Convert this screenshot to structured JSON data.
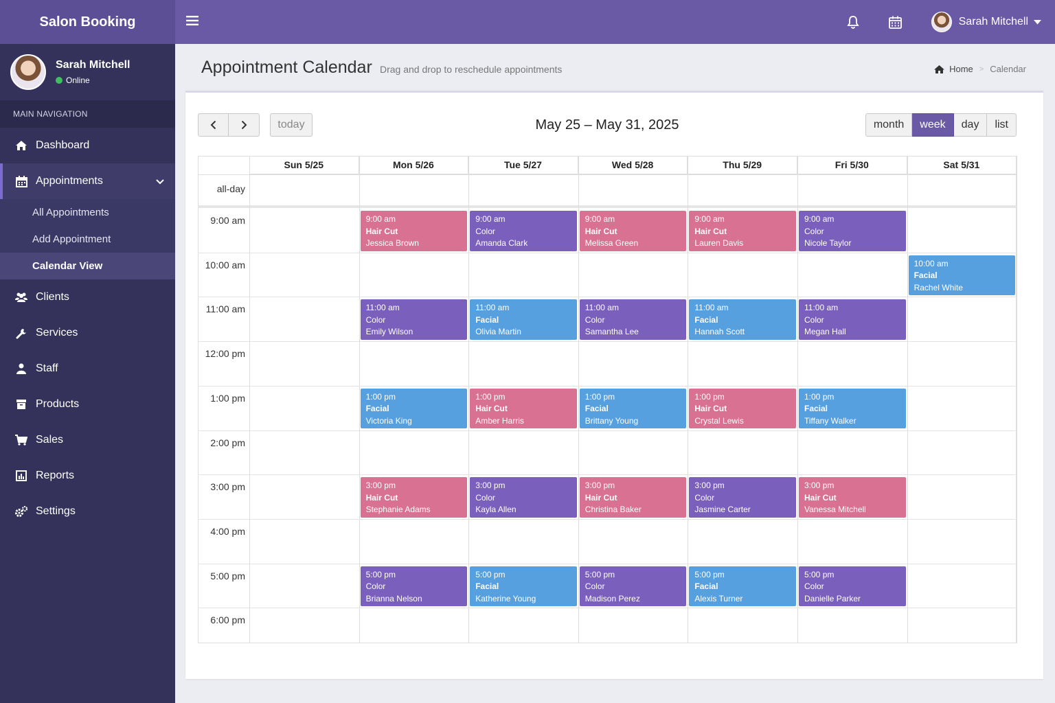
{
  "app": {
    "title": "Salon Booking"
  },
  "user": {
    "name": "Sarah Mitchell",
    "status": "Online"
  },
  "sidebar": {
    "header": "MAIN NAVIGATION",
    "items": [
      {
        "label": "Dashboard",
        "icon": "dashboard-icon"
      },
      {
        "label": "Appointments",
        "icon": "calendar-icon"
      },
      {
        "label": "Clients",
        "icon": "users-icon"
      },
      {
        "label": "Services",
        "icon": "wrench-icon"
      },
      {
        "label": "Staff",
        "icon": "user-icon"
      },
      {
        "label": "Products",
        "icon": "box-icon"
      },
      {
        "label": "Sales",
        "icon": "cart-icon"
      },
      {
        "label": "Reports",
        "icon": "chart-icon"
      },
      {
        "label": "Settings",
        "icon": "gears-icon"
      }
    ],
    "subitems": [
      {
        "label": "All Appointments"
      },
      {
        "label": "Add Appointment"
      },
      {
        "label": "Calendar View"
      }
    ]
  },
  "header": {
    "title": "Appointment Calendar",
    "subtitle": "Drag and drop to reschedule appointments",
    "breadcrumb": [
      "Home",
      "Calendar"
    ]
  },
  "calendar": {
    "range": "May 25 – May 31, 2025",
    "today_label": "today",
    "views": [
      "month",
      "week",
      "day",
      "list"
    ],
    "active_view": "week",
    "allday_label": "all-day",
    "days": [
      "Sun 5/25",
      "Mon 5/26",
      "Tue 5/27",
      "Wed 5/28",
      "Thu 5/29",
      "Fri 5/30",
      "Sat 5/31"
    ],
    "times": [
      "9:00 am",
      "10:00 am",
      "11:00 am",
      "12:00 pm",
      "1:00 pm",
      "2:00 pm",
      "3:00 pm",
      "4:00 pm",
      "5:00 pm",
      "6:00 pm"
    ],
    "colors": {
      "haircut": "#d97292",
      "color": "#7a5fbd",
      "facial": "#56a0e0"
    },
    "events": [
      {
        "day": 1,
        "slot": 0,
        "time": "9:00 am",
        "service": "Hair Cut",
        "client": "Jessica Brown",
        "type": "haircut"
      },
      {
        "day": 2,
        "slot": 0,
        "time": "9:00 am",
        "service": "Color",
        "client": "Amanda Clark",
        "type": "color"
      },
      {
        "day": 3,
        "slot": 0,
        "time": "9:00 am",
        "service": "Hair Cut",
        "client": "Melissa Green",
        "type": "haircut"
      },
      {
        "day": 4,
        "slot": 0,
        "time": "9:00 am",
        "service": "Hair Cut",
        "client": "Lauren Davis",
        "type": "haircut"
      },
      {
        "day": 5,
        "slot": 0,
        "time": "9:00 am",
        "service": "Color",
        "client": "Nicole Taylor",
        "type": "color"
      },
      {
        "day": 6,
        "slot": 1,
        "time": "10:00 am",
        "service": "Facial",
        "client": "Rachel White",
        "type": "facial"
      },
      {
        "day": 1,
        "slot": 2,
        "time": "11:00 am",
        "service": "Color",
        "client": "Emily Wilson",
        "type": "color"
      },
      {
        "day": 2,
        "slot": 2,
        "time": "11:00 am",
        "service": "Facial",
        "client": "Olivia Martin",
        "type": "facial"
      },
      {
        "day": 3,
        "slot": 2,
        "time": "11:00 am",
        "service": "Color",
        "client": "Samantha Lee",
        "type": "color"
      },
      {
        "day": 4,
        "slot": 2,
        "time": "11:00 am",
        "service": "Facial",
        "client": "Hannah Scott",
        "type": "facial"
      },
      {
        "day": 5,
        "slot": 2,
        "time": "11:00 am",
        "service": "Color",
        "client": "Megan Hall",
        "type": "color"
      },
      {
        "day": 1,
        "slot": 4,
        "time": "1:00 pm",
        "service": "Facial",
        "client": "Victoria King",
        "type": "facial"
      },
      {
        "day": 2,
        "slot": 4,
        "time": "1:00 pm",
        "service": "Hair Cut",
        "client": "Amber Harris",
        "type": "haircut"
      },
      {
        "day": 3,
        "slot": 4,
        "time": "1:00 pm",
        "service": "Facial",
        "client": "Brittany Young",
        "type": "facial"
      },
      {
        "day": 4,
        "slot": 4,
        "time": "1:00 pm",
        "service": "Hair Cut",
        "client": "Crystal Lewis",
        "type": "haircut"
      },
      {
        "day": 5,
        "slot": 4,
        "time": "1:00 pm",
        "service": "Facial",
        "client": "Tiffany Walker",
        "type": "facial"
      },
      {
        "day": 1,
        "slot": 6,
        "time": "3:00 pm",
        "service": "Hair Cut",
        "client": "Stephanie Adams",
        "type": "haircut"
      },
      {
        "day": 2,
        "slot": 6,
        "time": "3:00 pm",
        "service": "Color",
        "client": "Kayla Allen",
        "type": "color"
      },
      {
        "day": 3,
        "slot": 6,
        "time": "3:00 pm",
        "service": "Hair Cut",
        "client": "Christina Baker",
        "type": "haircut"
      },
      {
        "day": 4,
        "slot": 6,
        "time": "3:00 pm",
        "service": "Color",
        "client": "Jasmine Carter",
        "type": "color"
      },
      {
        "day": 5,
        "slot": 6,
        "time": "3:00 pm",
        "service": "Hair Cut",
        "client": "Vanessa Mitchell",
        "type": "haircut"
      },
      {
        "day": 1,
        "slot": 8,
        "time": "5:00 pm",
        "service": "Color",
        "client": "Brianna Nelson",
        "type": "color"
      },
      {
        "day": 2,
        "slot": 8,
        "time": "5:00 pm",
        "service": "Facial",
        "client": "Katherine Young",
        "type": "facial"
      },
      {
        "day": 3,
        "slot": 8,
        "time": "5:00 pm",
        "service": "Color",
        "client": "Madison Perez",
        "type": "color"
      },
      {
        "day": 4,
        "slot": 8,
        "time": "5:00 pm",
        "service": "Facial",
        "client": "Alexis Turner",
        "type": "facial"
      },
      {
        "day": 5,
        "slot": 8,
        "time": "5:00 pm",
        "service": "Color",
        "client": "Danielle Parker",
        "type": "color"
      }
    ]
  }
}
